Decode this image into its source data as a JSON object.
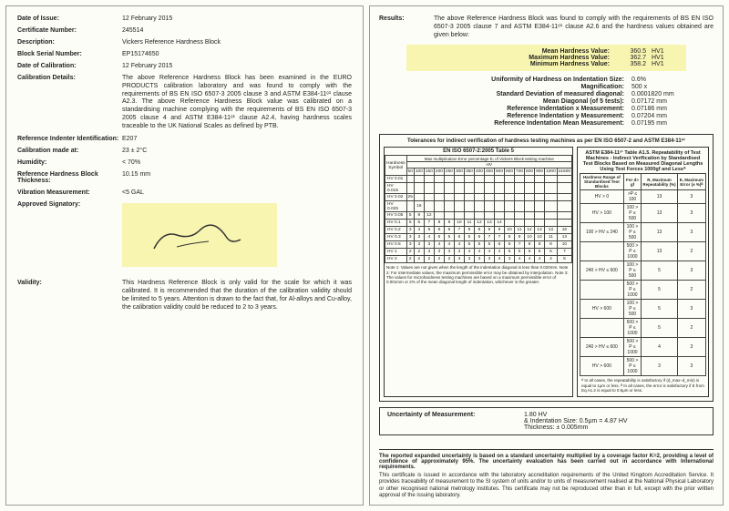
{
  "left": {
    "date_of_issue": {
      "label": "Date of Issue:",
      "value": "12 February 2015"
    },
    "cert_no": {
      "label": "Certificate Number:",
      "value": "245514"
    },
    "description": {
      "label": "Description:",
      "value": "Vickers Reference Hardness Block"
    },
    "serial": {
      "label": "Block Serial Number:",
      "value": "EP15174650"
    },
    "date_cal": {
      "label": "Date of Calibration:",
      "value": "12 February 2015"
    },
    "cal_details": {
      "label": "Calibration Details:",
      "value": "The above Reference Hardness Block has been examined in the EURO PRODUCTS calibration laboratory and was found to comply with the requirements of BS EN ISO 6507-3 2005 clause 3 and ASTM E384-11ᵉ¹ clause A2.3. The above Reference Hardness Block value was calibrated on a standardising machine complying with the requirements of BS EN ISO 6507-3 2005 clause 4 and ASTM E384-11ᵉ¹ clause A2.4, having hardness scales traceable to the UK National Scales as defined by PTB."
    },
    "indenter": {
      "label": "Reference Indenter Identification:",
      "value": "E207"
    },
    "cal_at": {
      "label": "Calibration made at:",
      "value": "23 ± 2°C"
    },
    "humidity": {
      "label": "Humidity:",
      "value": "< 70%"
    },
    "thickness": {
      "label": "Reference Hardness Block Thickness:",
      "value": "10.15 mm"
    },
    "vibration": {
      "label": "Vibration Measurement:",
      "value": "<5 GAL"
    },
    "signatory": {
      "label": "Approved Signatory:"
    },
    "validity": {
      "label": "Validity:",
      "value": "This Hardness Reference Block is only valid for the scale for which it was calibrated. It is recommended that the duration of the calibration validity should be limited to 5 years. Attention is drawn to the fact that, for Al-alloys and Cu-alloy, the calibration validity could be reduced to 2 to 3 years."
    }
  },
  "right": {
    "results": {
      "label": "Results:",
      "value": "The above Reference Hardness Block was found to comply with the requirements of BS EN ISO 6507-3 2005 clause 7 and ASTM E384-11ᵉ¹ clause A2.6 and the hardness values obtained are given below:"
    },
    "hl": [
      {
        "label": "Mean Hardness Value:",
        "v1": "360.5",
        "v2": "HV1"
      },
      {
        "label": "Maximum Hardness Value:",
        "v1": "362.7",
        "v2": "HV1"
      },
      {
        "label": "Minimum Hardness Value:",
        "v1": "358.2",
        "v2": "HV1"
      }
    ],
    "metrics": [
      {
        "label": "Uniformity of Hardness on Indentation Size:",
        "v": "0.6%"
      },
      {
        "label": "Magnification:",
        "v": "500 x"
      },
      {
        "label": "Standard Deviation of measured diagonal:",
        "v": "0.0001820 mm"
      },
      {
        "label": "Mean Diagonal (of 5 tests):",
        "v": "0.07172 mm"
      },
      {
        "label": "Reference Indentation x Measurement:",
        "v": "0.07186 mm"
      },
      {
        "label": "Reference Indentation y Measurement:",
        "v": "0.07204 mm"
      },
      {
        "label": "Reference Indentation Mean Measurement:",
        "v": "0.07195 mm"
      }
    ],
    "tol_title": "Tolerances for indirect verification of hardness testing machines as per EN ISO 6507-2 and ASTM E384-11ᵉ¹",
    "tol_left_head": "EN ISO 6507-2:2005 Table 5",
    "tol_left_sub": "Max multiplication Error percentage Eᵣ of Vickers Block testing machine",
    "tol_hardness_label": "Hardness Symbol",
    "tol_hv_col": "HV",
    "tol_cols": [
      "50",
      "100",
      "150",
      "200",
      "250",
      "300",
      "350",
      "400",
      "450",
      "500",
      "600",
      "700",
      "800",
      "900",
      "1000",
      "≥1500"
    ],
    "tol_rows": [
      {
        "sym": "HV 0.01",
        "v": []
      },
      {
        "sym": "HV 0.015",
        "v": []
      },
      {
        "sym": "HV 0.02",
        "v": [
          "25"
        ]
      },
      {
        "sym": "HV 0.025",
        "v": [
          "",
          "16"
        ]
      },
      {
        "sym": "HV 0.05",
        "v": [
          "5",
          "8",
          "12"
        ]
      },
      {
        "sym": "HV 0.1",
        "v": [
          "5",
          "5",
          "7",
          "8",
          "9",
          "10",
          "11",
          "12",
          "13",
          "14"
        ]
      },
      {
        "sym": "HV 0.2",
        "v": [
          "3",
          "4",
          "5",
          "6",
          "6",
          "7",
          "8",
          "8",
          "9",
          "9",
          "10",
          "11",
          "12",
          "13",
          "13",
          "16"
        ]
      },
      {
        "sym": "HV 0.3",
        "v": [
          "3",
          "3",
          "4",
          "5",
          "5",
          "6",
          "6",
          "6",
          "7",
          "7",
          "8",
          "9",
          "10",
          "10",
          "11",
          "13"
        ]
      },
      {
        "sym": "HV 0.5",
        "v": [
          "3",
          "3",
          "3",
          "4",
          "4",
          "4",
          "5",
          "5",
          "5",
          "6",
          "6",
          "7",
          "8",
          "8",
          "8",
          "10"
        ]
      },
      {
        "sym": "HV 1",
        "v": [
          "2",
          "2",
          "3",
          "3",
          "3",
          "3",
          "4",
          "4",
          "4",
          "4",
          "5",
          "5",
          "5",
          "6",
          "6",
          "7"
        ]
      },
      {
        "sym": "HV 2",
        "v": [
          "2",
          "2",
          "2",
          "2",
          "2",
          "3",
          "3",
          "3",
          "3",
          "3",
          "3",
          "4",
          "4",
          "4",
          "4",
          "5"
        ]
      }
    ],
    "tol_notes": "Note 1: Values are not given when the length of the indentation diagonal is less than 0.020mm.\nNote 2: For intermediate values, the maximum permissible error may be obtained by interpolation.\nNote 3: The values for microhardness testing machines are based on a maximum permissible error of 0.001mm or 2% of the mean diagonal length of indentation, whichever is the greater.",
    "tol_right_head": "ASTM E384-11ᵉ¹ Table A1.5. Repeatability of Test Machines - Indirect Verification by Standardised Test Blocks Based on Measured Diagonal Lengths Using Test Forces 1000gf and Lessᴬ",
    "tol_right_cols": [
      "Hardness Range of Standardised Test Blocks",
      "For d> gf",
      "R, Maximum Repeatability (%)",
      "E, Maximum Error (± %)ᴮ"
    ],
    "tol_right_rows": [
      [
        "HV > 0",
        ">P ≤ 100",
        "13",
        "3"
      ],
      [
        "HV > 100",
        "100 > P ≤ 500",
        "13",
        "3"
      ],
      [
        "100 > HV ≤ 240",
        "100 > P ≤ 500",
        "13",
        "3"
      ],
      [
        "",
        "500 > P ≤ 1000",
        "13",
        "2"
      ],
      [
        "240 > HV ≤ 600",
        "100 > P ≤ 500",
        "5",
        "3"
      ],
      [
        "",
        "500 > P ≤ 1000",
        "5",
        "2"
      ],
      [
        "HV > 600",
        "100 > P ≤ 500",
        "5",
        "3"
      ],
      [
        "",
        "500 > P ≤ 1000",
        "5",
        "2"
      ],
      [
        "240 > HV ≤ 600",
        "500 > P ≤ 1000",
        "4",
        "3"
      ],
      [
        "HV > 600",
        "500 > P ≤ 1000",
        "3",
        "3"
      ]
    ],
    "tol_right_notes": "ᴬ In all cases, the repeatability is satisfactory if (d_max–d_min) is equal to 1μm or less.\nᴮ In all cases, the error is satisfactory if E from Eq A1.2 is equal to 0.5μm or less.",
    "uom": {
      "label": "Uncertainty of Measurement:",
      "l1": "1.80 HV",
      "l2": "& Indentation Size: 0.5μm = 4.87 HV",
      "l3": "Thickness: ± 0.005mm"
    },
    "footer_bold": "The reported expanded uncertainty is based on a standard uncertainty multiplied by a coverage factor K=2, providing a level of confidence of approximately 95%. The uncertainty evaluation has been carried out in accordance with International requirements.",
    "footer_small": "This certificate is issued in accordance with the laboratory accreditation requirements of the United Kingdom Accreditation Service. It provides traceability of measurement to the SI system of units and/or to units of measurement realised at the National Physical Laboratory or other recognised national metrology institutes. This certificate may not be reproduced other than in full, except with the prior written approval of the issuing laboratory."
  }
}
